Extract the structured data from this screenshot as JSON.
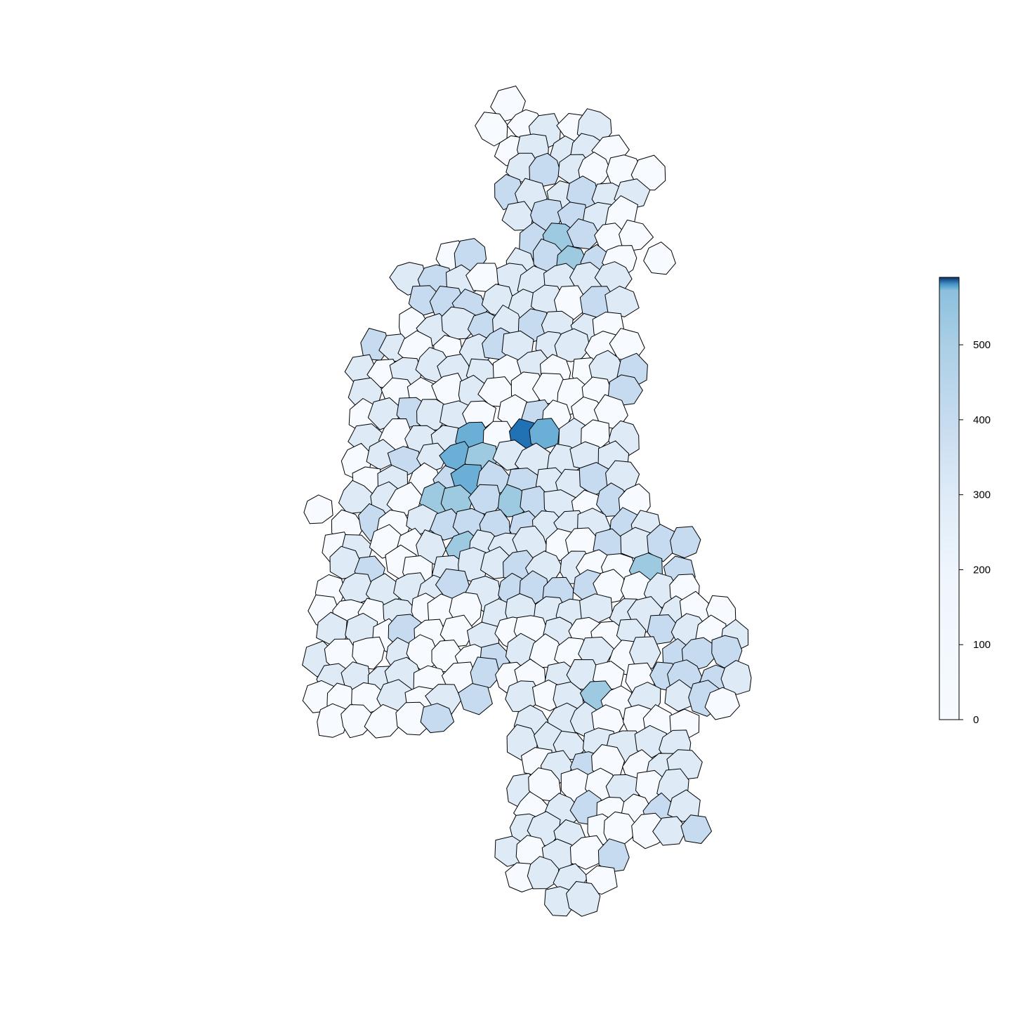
{
  "map_data": {
    "type": "choropleth",
    "palette": [
      "#f7fbff",
      "#deebf7",
      "#c6dbef",
      "#9ecae1",
      "#6baed6",
      "#4292c6",
      "#2171b5",
      "#08306b"
    ],
    "legend": {
      "placement": "right",
      "min": 0,
      "max": 590,
      "ticks": [
        "0",
        "100",
        "200",
        "300",
        "400",
        "500"
      ],
      "tick_values": [
        0,
        100,
        200,
        300,
        400,
        500
      ]
    },
    "highlights": [
      {
        "region": "dark-cell-center",
        "value": 590
      },
      {
        "region": "medium-cell-west-center",
        "value": 480
      }
    ]
  }
}
